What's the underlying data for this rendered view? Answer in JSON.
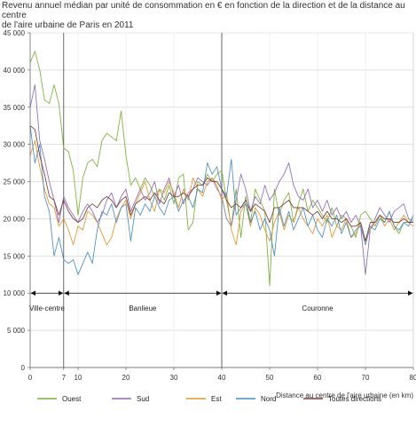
{
  "chart_data": {
    "type": "line",
    "title_line1": "Revenu annuel médian par unité de consommation en € en fonction de la direction et de la distance au centre",
    "title_line2": "de l'aire urbaine de Paris en 2011",
    "xlabel": "Distance au centre de l'aire urbaine (en km)",
    "ylabel": "",
    "xlim": [
      0,
      80
    ],
    "ylim": [
      0,
      45000
    ],
    "x_ticks": [
      0,
      7,
      10,
      20,
      30,
      40,
      50,
      60,
      70,
      80
    ],
    "y_ticks": [
      0,
      5000,
      10000,
      15000,
      20000,
      25000,
      30000,
      35000,
      40000,
      45000
    ],
    "y_tick_labels": [
      "0",
      "5 000",
      "10 000",
      "15 000",
      "20 000",
      "25 000",
      "30 000",
      "35 000",
      "40 000",
      "45 000"
    ],
    "zones": [
      {
        "label": "Ville-centre",
        "x_start": 0,
        "x_end": 7
      },
      {
        "label": "Banlieue",
        "x_start": 7,
        "x_end": 40
      },
      {
        "label": "Couronne",
        "x_start": 40,
        "x_end": 80
      }
    ],
    "zone_arrow_y": 10000,
    "dividers": [
      7,
      40
    ],
    "legend_position": "bottom",
    "series": [
      {
        "name": "Ouest",
        "color": "#7aaf3c",
        "x": [
          0,
          1,
          2,
          3,
          4,
          5,
          6,
          7,
          8,
          9,
          10,
          11,
          12,
          13,
          14,
          15,
          16,
          17,
          18,
          19,
          20,
          21,
          22,
          23,
          24,
          25,
          26,
          27,
          28,
          29,
          30,
          31,
          32,
          33,
          34,
          35,
          36,
          37,
          38,
          39,
          40,
          41,
          42,
          43,
          44,
          45,
          46,
          47,
          48,
          49,
          50,
          51,
          52,
          53,
          54,
          55,
          56,
          57,
          58,
          59,
          60,
          61,
          62,
          63,
          64,
          65,
          66,
          67,
          68,
          69,
          70,
          71,
          72,
          73,
          74,
          75,
          76,
          77,
          78,
          79,
          80
        ],
        "values": [
          41000,
          42500,
          40000,
          36000,
          35500,
          38000,
          35500,
          29500,
          29000,
          26500,
          20500,
          25500,
          27500,
          28000,
          27000,
          30500,
          31500,
          31000,
          30500,
          34500,
          28500,
          24500,
          25500,
          24000,
          25500,
          24500,
          23000,
          24000,
          22500,
          24500,
          22000,
          25500,
          26000,
          18500,
          19500,
          25000,
          24500,
          26000,
          25000,
          26000,
          26500,
          22500,
          19000,
          24000,
          17500,
          23000,
          19500,
          24000,
          22500,
          21000,
          11000,
          24000,
          20500,
          22500,
          23500,
          19500,
          22000,
          24000,
          21000,
          22500,
          21500,
          20500,
          19500,
          21500,
          19000,
          20500,
          20000,
          19000,
          17500,
          20500,
          21000,
          20000,
          19000,
          20500,
          19500,
          21000,
          19000,
          18000,
          19500,
          19500,
          20000
        ]
      },
      {
        "name": "Sud",
        "color": "#8e6bb3",
        "x": [
          0,
          1,
          2,
          3,
          4,
          5,
          6,
          7,
          8,
          9,
          10,
          11,
          12,
          13,
          14,
          15,
          16,
          17,
          18,
          19,
          20,
          21,
          22,
          23,
          24,
          25,
          26,
          27,
          28,
          29,
          30,
          31,
          32,
          33,
          34,
          35,
          36,
          37,
          38,
          39,
          40,
          41,
          42,
          43,
          44,
          45,
          46,
          47,
          48,
          49,
          50,
          51,
          52,
          53,
          54,
          55,
          56,
          57,
          58,
          59,
          60,
          61,
          62,
          63,
          64,
          65,
          66,
          67,
          68,
          69,
          70,
          71,
          72,
          73,
          74,
          75,
          76,
          77,
          78,
          79,
          80
        ],
        "values": [
          35000,
          38000,
          30500,
          28000,
          25000,
          22500,
          19500,
          23000,
          21500,
          20500,
          19500,
          21000,
          22000,
          21000,
          19500,
          20500,
          22500,
          23500,
          21500,
          23000,
          24000,
          21000,
          22500,
          24000,
          22500,
          23500,
          25000,
          22000,
          24000,
          25500,
          23000,
          24500,
          22000,
          23500,
          24000,
          25500,
          25000,
          24500,
          25500,
          24000,
          23000,
          20000,
          19000,
          22500,
          26000,
          24000,
          21000,
          23000,
          22000,
          24500,
          22500,
          23500,
          25000,
          26000,
          27500,
          24500,
          23000,
          22500,
          24000,
          21500,
          22500,
          21000,
          22500,
          20500,
          21500,
          20000,
          21000,
          19500,
          20500,
          19000,
          12500,
          18500,
          20000,
          21500,
          20500,
          19500,
          21000,
          21500,
          22000,
          20000,
          19500
        ]
      },
      {
        "name": "Est",
        "color": "#e0962a",
        "x": [
          0,
          1,
          2,
          3,
          4,
          5,
          6,
          7,
          8,
          9,
          10,
          11,
          12,
          13,
          14,
          15,
          16,
          17,
          18,
          19,
          20,
          21,
          22,
          23,
          24,
          25,
          26,
          27,
          28,
          29,
          30,
          31,
          32,
          33,
          34,
          35,
          36,
          37,
          38,
          39,
          40,
          41,
          42,
          43,
          44,
          45,
          46,
          47,
          48,
          49,
          50,
          51,
          52,
          53,
          54,
          55,
          56,
          57,
          58,
          59,
          60,
          61,
          62,
          63,
          64,
          65,
          66,
          67,
          68,
          69,
          70,
          71,
          72,
          73,
          74,
          75,
          76,
          77,
          78,
          79,
          80
        ],
        "values": [
          28500,
          30500,
          27000,
          24000,
          22000,
          21500,
          19000,
          20000,
          18500,
          16500,
          19000,
          18500,
          21000,
          20500,
          19500,
          18000,
          16500,
          17500,
          20000,
          21500,
          22500,
          20000,
          22000,
          23500,
          25000,
          22500,
          21000,
          24000,
          23500,
          25000,
          23500,
          21500,
          24000,
          22500,
          25500,
          24000,
          23000,
          25000,
          25500,
          24500,
          22500,
          23500,
          18500,
          16500,
          21000,
          22000,
          19000,
          21500,
          20500,
          18500,
          17000,
          19500,
          21000,
          18500,
          20500,
          19500,
          21500,
          20000,
          19000,
          18000,
          20000,
          19000,
          20500,
          17500,
          19000,
          18500,
          20000,
          17500,
          18000,
          19500,
          17000,
          18500,
          19500,
          20500,
          19000,
          20000,
          18500,
          19500,
          20500,
          19500,
          19000
        ]
      },
      {
        "name": "Nord",
        "color": "#4a8cc4",
        "x": [
          0,
          1,
          2,
          3,
          4,
          5,
          6,
          7,
          8,
          9,
          10,
          11,
          12,
          13,
          14,
          15,
          16,
          17,
          18,
          19,
          20,
          21,
          22,
          23,
          24,
          25,
          26,
          27,
          28,
          29,
          30,
          31,
          32,
          33,
          34,
          35,
          36,
          37,
          38,
          39,
          40,
          41,
          42,
          43,
          44,
          45,
          46,
          47,
          48,
          49,
          50,
          51,
          52,
          53,
          54,
          55,
          56,
          57,
          58,
          59,
          60,
          61,
          62,
          63,
          64,
          65,
          66,
          67,
          68,
          69,
          70,
          71,
          72,
          73,
          74,
          75,
          76,
          77,
          78,
          79,
          80
        ],
        "values": [
          32500,
          27500,
          30000,
          23000,
          21000,
          15000,
          17500,
          14500,
          14000,
          14500,
          12500,
          14000,
          15500,
          14000,
          18500,
          21000,
          20500,
          22000,
          19500,
          21500,
          22000,
          17000,
          21500,
          20500,
          22000,
          21000,
          23000,
          21500,
          20500,
          22500,
          23000,
          21000,
          22500,
          23000,
          21500,
          24000,
          23500,
          27500,
          26000,
          27000,
          24000,
          23000,
          28000,
          20500,
          21500,
          22000,
          19500,
          21000,
          18500,
          20000,
          18500,
          15000,
          21500,
          19000,
          21000,
          18500,
          20000,
          21500,
          19000,
          20500,
          18500,
          17500,
          20000,
          19000,
          20500,
          18000,
          19500,
          17500,
          18500,
          19000,
          16500,
          19000,
          18500,
          20000,
          19500,
          21000,
          19000,
          18500,
          19500,
          19000,
          20500
        ]
      },
      {
        "name": "Toutes directions",
        "color": "#7a3a3a",
        "x": [
          0,
          1,
          2,
          3,
          4,
          5,
          6,
          7,
          8,
          9,
          10,
          11,
          12,
          13,
          14,
          15,
          16,
          17,
          18,
          19,
          20,
          21,
          22,
          23,
          24,
          25,
          26,
          27,
          28,
          29,
          30,
          31,
          32,
          33,
          34,
          35,
          36,
          37,
          38,
          39,
          40,
          41,
          42,
          43,
          44,
          45,
          46,
          47,
          48,
          49,
          50,
          51,
          52,
          53,
          54,
          55,
          56,
          57,
          58,
          59,
          60,
          61,
          62,
          63,
          64,
          65,
          66,
          67,
          68,
          69,
          70,
          71,
          72,
          73,
          74,
          75,
          76,
          77,
          78,
          79,
          80
        ],
        "values": [
          32500,
          32000,
          28500,
          26000,
          23000,
          22500,
          20500,
          22500,
          21000,
          20000,
          19500,
          20000,
          21500,
          22000,
          21500,
          22500,
          23000,
          22500,
          21500,
          22500,
          23000,
          20500,
          22000,
          22500,
          23000,
          22500,
          23500,
          22500,
          22000,
          23500,
          23000,
          23000,
          23500,
          23000,
          24000,
          24500,
          24500,
          25500,
          25000,
          25000,
          24000,
          22500,
          21500,
          22000,
          21500,
          22500,
          21000,
          22000,
          21500,
          21000,
          19500,
          21500,
          21500,
          22000,
          22500,
          21500,
          21500,
          21500,
          21000,
          20500,
          21000,
          20000,
          21000,
          20000,
          20000,
          19500,
          20000,
          19000,
          19000,
          19500,
          17000,
          19500,
          19500,
          20500,
          20000,
          20000,
          19500,
          19500,
          20000,
          19500,
          19500
        ]
      }
    ]
  }
}
